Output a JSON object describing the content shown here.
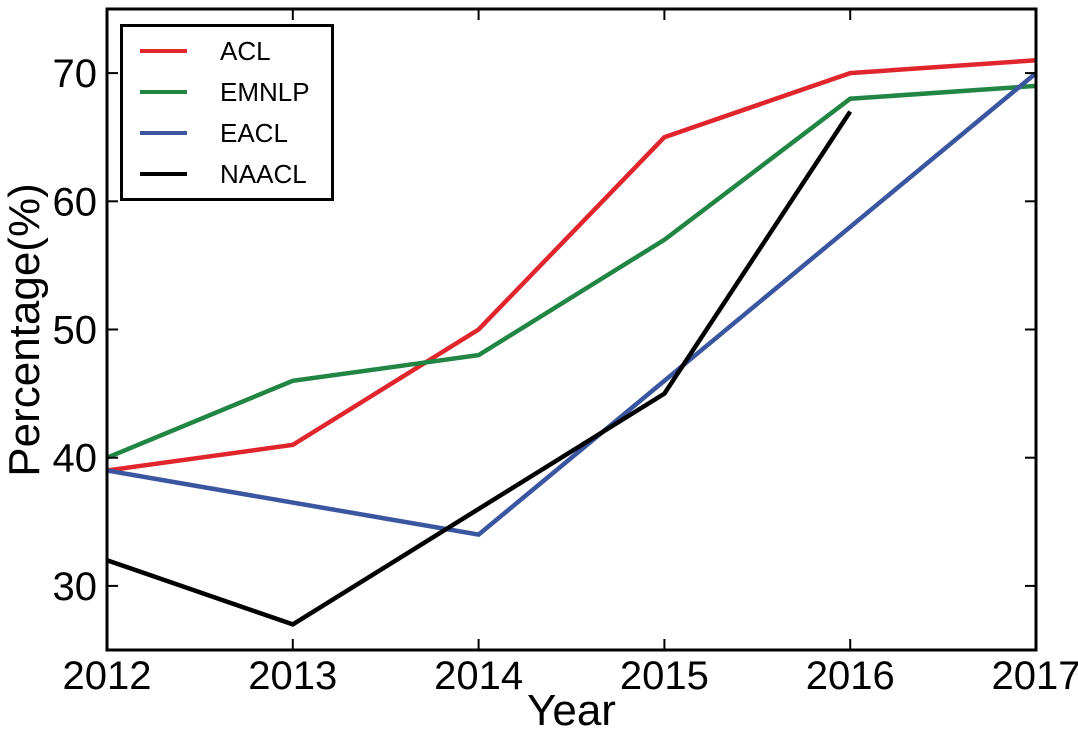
{
  "figure": {
    "background": "#ffffff",
    "axis_color": "#000000",
    "tick_direction": "in"
  },
  "chart_data": {
    "type": "line",
    "title": "",
    "xlabel": "Year",
    "ylabel": "Percentage(%)",
    "xlim": [
      2012,
      2017
    ],
    "ylim": [
      25,
      75
    ],
    "xticks": [
      2012,
      2013,
      2014,
      2015,
      2016,
      2017
    ],
    "yticks": [
      30,
      40,
      50,
      60,
      70
    ],
    "grid": false,
    "legend_position": "upper-left",
    "series": [
      {
        "name": "ACL",
        "color": "#e1252d",
        "points": [
          [
            2012,
            39
          ],
          [
            2013,
            41
          ],
          [
            2014,
            50
          ],
          [
            2015,
            65
          ],
          [
            2016,
            70
          ],
          [
            2017,
            71
          ]
        ]
      },
      {
        "name": "EMNLP",
        "color": "#218543",
        "points": [
          [
            2012,
            40
          ],
          [
            2013,
            46
          ],
          [
            2014,
            48
          ],
          [
            2015,
            57
          ],
          [
            2016,
            68
          ],
          [
            2017,
            69
          ]
        ]
      },
      {
        "name": "EACL",
        "color": "#3a56a0",
        "points": [
          [
            2012,
            39
          ],
          [
            2014,
            34
          ],
          [
            2017,
            70
          ]
        ]
      },
      {
        "name": "NAACL",
        "color": "#000000",
        "points": [
          [
            2012,
            32
          ],
          [
            2013,
            27
          ],
          [
            2015,
            45
          ],
          [
            2016,
            67
          ]
        ]
      }
    ]
  }
}
